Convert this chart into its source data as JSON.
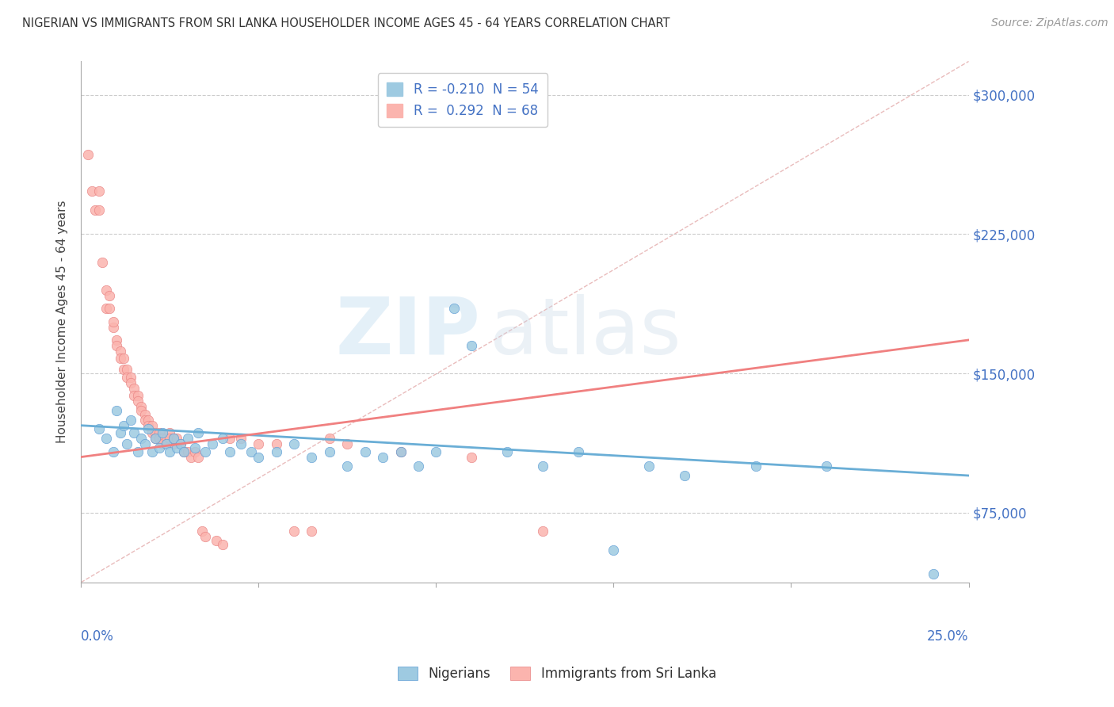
{
  "title": "NIGERIAN VS IMMIGRANTS FROM SRI LANKA HOUSEHOLDER INCOME AGES 45 - 64 YEARS CORRELATION CHART",
  "source": "Source: ZipAtlas.com",
  "ylabel": "Householder Income Ages 45 - 64 years",
  "ytick_labels": [
    "$75,000",
    "$150,000",
    "$225,000",
    "$300,000"
  ],
  "ytick_values": [
    75000,
    150000,
    225000,
    300000
  ],
  "xmin": 0.0,
  "xmax": 0.25,
  "ymin": 37500,
  "ymax": 318000,
  "watermark_zip": "ZIP",
  "watermark_atlas": "atlas",
  "blue_color": "#6aaed6",
  "pink_color": "#f08080",
  "blue_marker_color": "#9ecae1",
  "pink_marker_color": "#fbb4ae",
  "blue_scatter": [
    [
      0.005,
      120000
    ],
    [
      0.007,
      115000
    ],
    [
      0.009,
      108000
    ],
    [
      0.01,
      130000
    ],
    [
      0.011,
      118000
    ],
    [
      0.012,
      122000
    ],
    [
      0.013,
      112000
    ],
    [
      0.014,
      125000
    ],
    [
      0.015,
      118000
    ],
    [
      0.016,
      108000
    ],
    [
      0.017,
      115000
    ],
    [
      0.018,
      112000
    ],
    [
      0.019,
      120000
    ],
    [
      0.02,
      108000
    ],
    [
      0.021,
      115000
    ],
    [
      0.022,
      110000
    ],
    [
      0.023,
      118000
    ],
    [
      0.024,
      112000
    ],
    [
      0.025,
      108000
    ],
    [
      0.026,
      115000
    ],
    [
      0.027,
      110000
    ],
    [
      0.028,
      112000
    ],
    [
      0.029,
      108000
    ],
    [
      0.03,
      115000
    ],
    [
      0.032,
      110000
    ],
    [
      0.033,
      118000
    ],
    [
      0.035,
      108000
    ],
    [
      0.037,
      112000
    ],
    [
      0.04,
      115000
    ],
    [
      0.042,
      108000
    ],
    [
      0.045,
      112000
    ],
    [
      0.048,
      108000
    ],
    [
      0.05,
      105000
    ],
    [
      0.055,
      108000
    ],
    [
      0.06,
      112000
    ],
    [
      0.065,
      105000
    ],
    [
      0.07,
      108000
    ],
    [
      0.075,
      100000
    ],
    [
      0.08,
      108000
    ],
    [
      0.085,
      105000
    ],
    [
      0.09,
      108000
    ],
    [
      0.095,
      100000
    ],
    [
      0.1,
      108000
    ],
    [
      0.105,
      185000
    ],
    [
      0.11,
      165000
    ],
    [
      0.12,
      108000
    ],
    [
      0.13,
      100000
    ],
    [
      0.14,
      108000
    ],
    [
      0.15,
      55000
    ],
    [
      0.16,
      100000
    ],
    [
      0.17,
      95000
    ],
    [
      0.19,
      100000
    ],
    [
      0.21,
      100000
    ],
    [
      0.24,
      42000
    ]
  ],
  "pink_scatter": [
    [
      0.002,
      268000
    ],
    [
      0.003,
      248000
    ],
    [
      0.004,
      238000
    ],
    [
      0.005,
      238000
    ],
    [
      0.005,
      248000
    ],
    [
      0.006,
      210000
    ],
    [
      0.007,
      195000
    ],
    [
      0.007,
      185000
    ],
    [
      0.008,
      185000
    ],
    [
      0.008,
      192000
    ],
    [
      0.009,
      175000
    ],
    [
      0.009,
      178000
    ],
    [
      0.01,
      168000
    ],
    [
      0.01,
      165000
    ],
    [
      0.011,
      162000
    ],
    [
      0.011,
      158000
    ],
    [
      0.012,
      158000
    ],
    [
      0.012,
      152000
    ],
    [
      0.013,
      152000
    ],
    [
      0.013,
      148000
    ],
    [
      0.014,
      148000
    ],
    [
      0.014,
      145000
    ],
    [
      0.015,
      142000
    ],
    [
      0.015,
      138000
    ],
    [
      0.016,
      138000
    ],
    [
      0.016,
      135000
    ],
    [
      0.017,
      132000
    ],
    [
      0.017,
      130000
    ],
    [
      0.018,
      128000
    ],
    [
      0.018,
      125000
    ],
    [
      0.019,
      125000
    ],
    [
      0.019,
      122000
    ],
    [
      0.02,
      122000
    ],
    [
      0.02,
      118000
    ],
    [
      0.021,
      118000
    ],
    [
      0.021,
      115000
    ],
    [
      0.022,
      118000
    ],
    [
      0.022,
      115000
    ],
    [
      0.023,
      115000
    ],
    [
      0.023,
      112000
    ],
    [
      0.024,
      115000
    ],
    [
      0.024,
      112000
    ],
    [
      0.025,
      118000
    ],
    [
      0.025,
      115000
    ],
    [
      0.026,
      112000
    ],
    [
      0.026,
      115000
    ],
    [
      0.027,
      115000
    ],
    [
      0.028,
      112000
    ],
    [
      0.029,
      108000
    ],
    [
      0.03,
      108000
    ],
    [
      0.031,
      105000
    ],
    [
      0.032,
      108000
    ],
    [
      0.033,
      105000
    ],
    [
      0.034,
      65000
    ],
    [
      0.035,
      62000
    ],
    [
      0.038,
      60000
    ],
    [
      0.04,
      58000
    ],
    [
      0.042,
      115000
    ],
    [
      0.045,
      115000
    ],
    [
      0.05,
      112000
    ],
    [
      0.055,
      112000
    ],
    [
      0.06,
      65000
    ],
    [
      0.065,
      65000
    ],
    [
      0.07,
      115000
    ],
    [
      0.075,
      112000
    ],
    [
      0.09,
      108000
    ],
    [
      0.11,
      105000
    ],
    [
      0.13,
      65000
    ]
  ],
  "blue_trend_x": [
    0.0,
    0.25
  ],
  "blue_trend_y": [
    122000,
    95000
  ],
  "pink_trend_x": [
    0.0,
    0.25
  ],
  "pink_trend_y": [
    105000,
    168000
  ],
  "ref_line_x": [
    0.0,
    0.25
  ],
  "ref_line_y": [
    37500,
    318000
  ]
}
